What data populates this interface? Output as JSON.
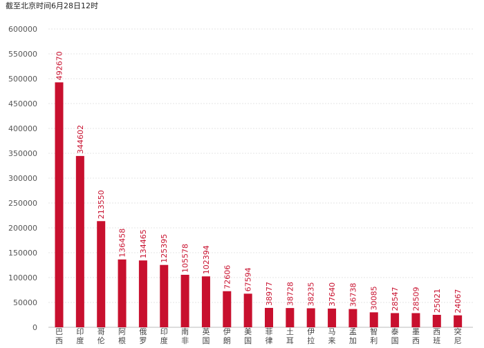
{
  "chart_data": {
    "type": "bar",
    "title": "",
    "subtitle": "截至北京时间6月28日12时",
    "xlabel": "",
    "ylabel": "",
    "ylim": [
      0,
      600000
    ],
    "yticks": [
      0,
      50000,
      100000,
      150000,
      200000,
      250000,
      300000,
      350000,
      400000,
      450000,
      500000,
      550000,
      600000
    ],
    "grid": true,
    "legend": "none",
    "bar_color": "#c8102e",
    "categories": [
      "巴西",
      "印度",
      "哥伦",
      "阿根",
      "俄罗",
      "印度",
      "南非",
      "英国",
      "伊朗",
      "美国",
      "菲律",
      "土耳",
      "伊拉",
      "马来",
      "孟加",
      "智利",
      "泰国",
      "墨西",
      "西班",
      "突尼"
    ],
    "values": [
      492670,
      344602,
      213550,
      136458,
      134465,
      125395,
      105578,
      102394,
      72606,
      67594,
      38977,
      38728,
      38235,
      37640,
      36738,
      30085,
      28547,
      28509,
      25021,
      24067
    ]
  }
}
